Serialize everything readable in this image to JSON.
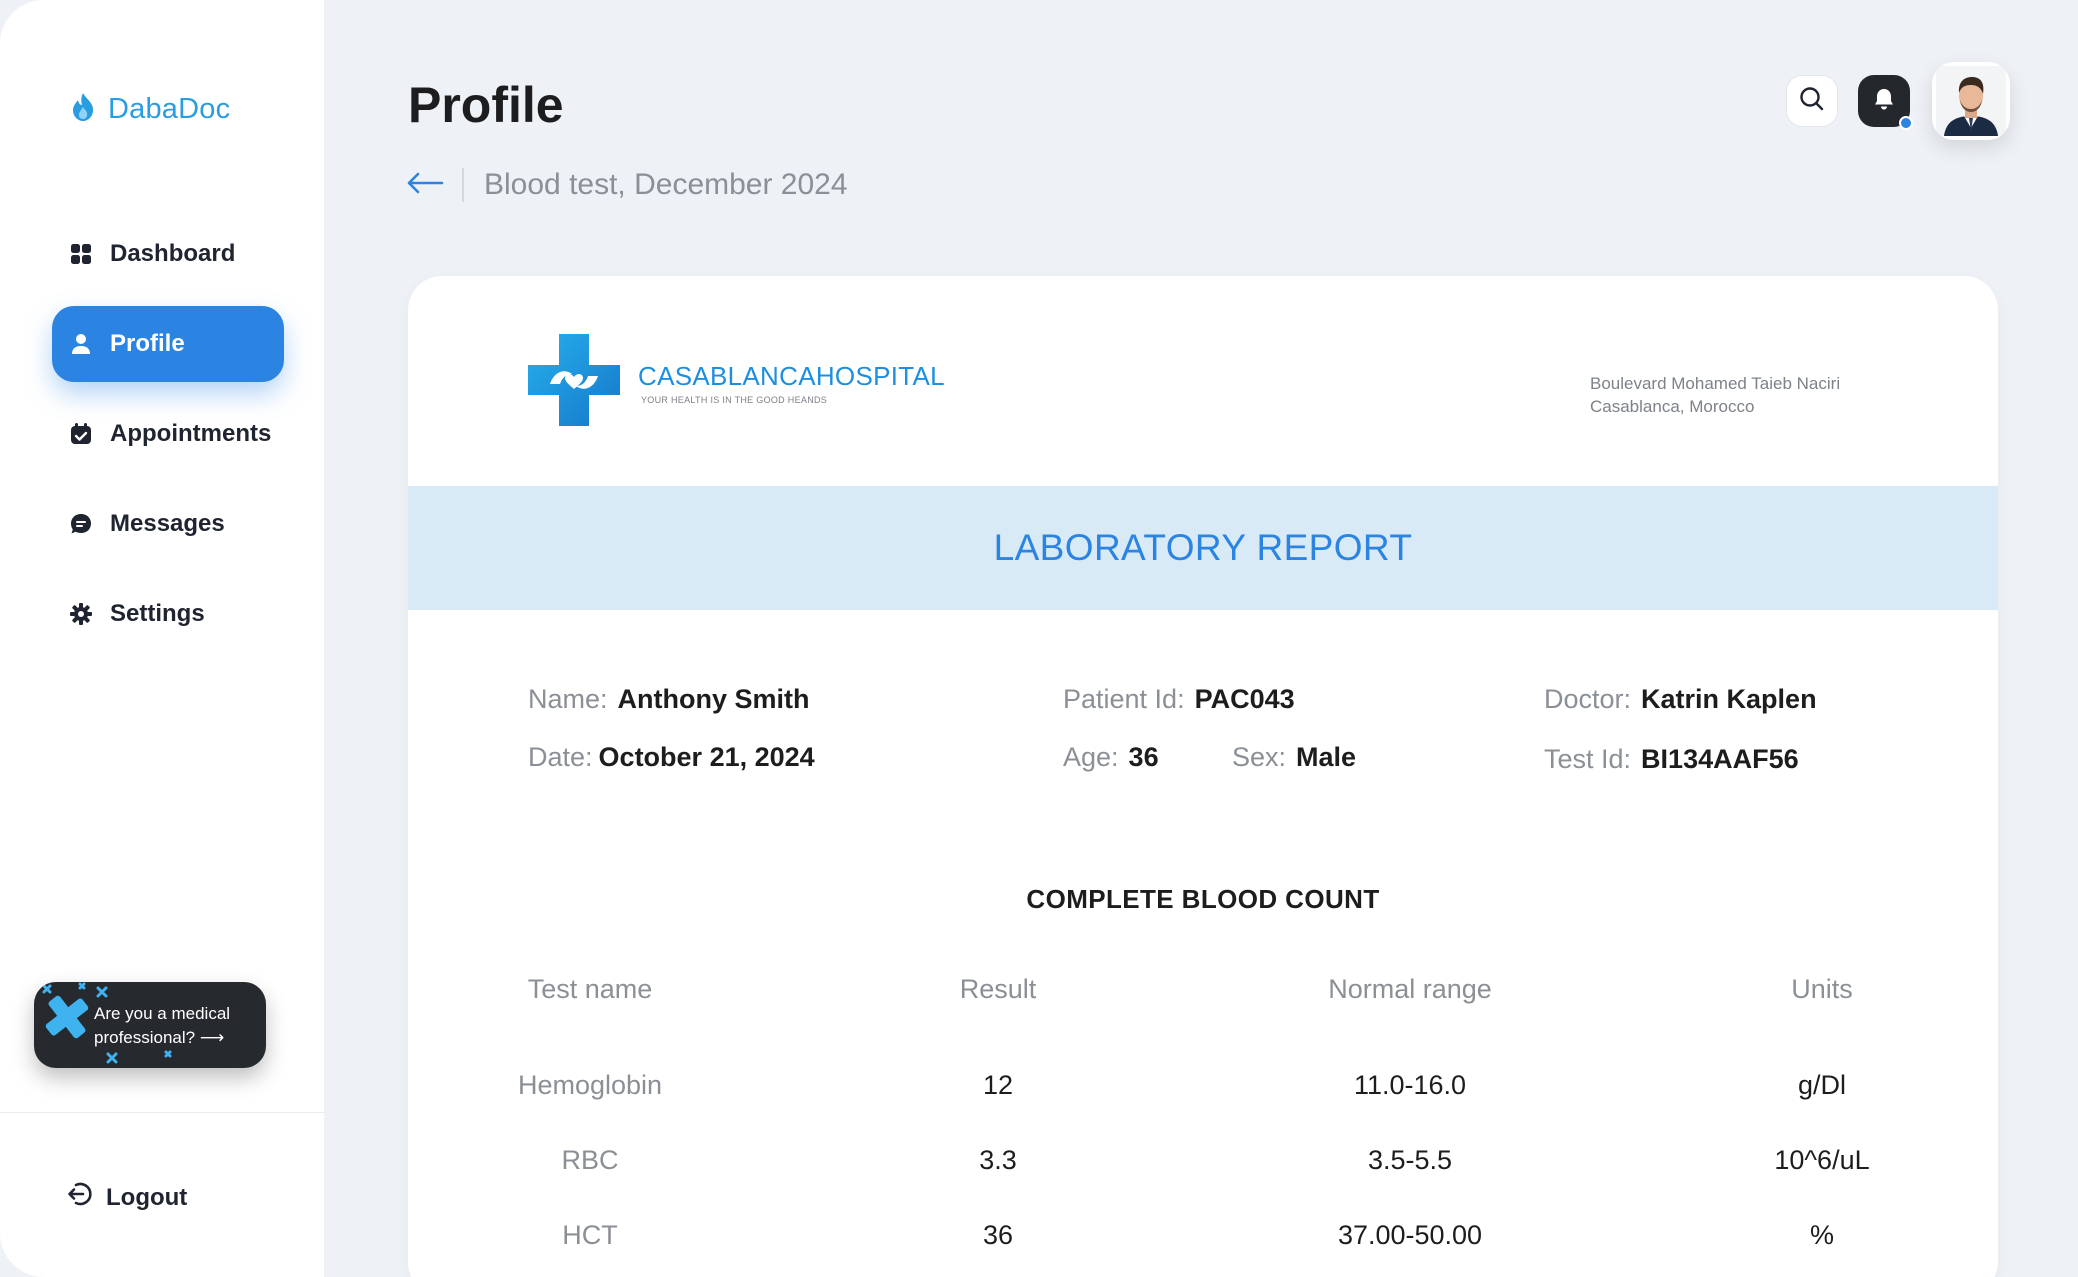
{
  "app": {
    "brand": "DabaDoc"
  },
  "sidebar": {
    "items": [
      {
        "label": "Dashboard",
        "icon": "grid-icon",
        "active": false
      },
      {
        "label": "Profile",
        "icon": "user-icon",
        "active": true
      },
      {
        "label": "Appointments",
        "icon": "calendar-check-icon",
        "active": false
      },
      {
        "label": "Messages",
        "icon": "chat-icon",
        "active": false
      },
      {
        "label": "Settings",
        "icon": "gear-icon",
        "active": false
      }
    ],
    "promo": {
      "line1": "Are you a medical",
      "line2": "professional?",
      "arrow": "⟶"
    },
    "logout": "Logout"
  },
  "header": {
    "title": "Profile",
    "back_arrow": "⟵",
    "breadcrumb": "Blood test, December 2024"
  },
  "report": {
    "hospital_name": "CASABLANCAHOSPITAL",
    "hospital_tagline": "YOUR HEALTH IS IN THE GOOD HEANDS",
    "address_line1": "Boulevard Mohamed Taieb Naciri",
    "address_line2": "Casablanca, Morocco",
    "title": "LABORATORY REPORT",
    "patient": {
      "name_label": "Name:",
      "name": "Anthony Smith",
      "date_label": "Date:",
      "date": "October 21, 2024",
      "patient_id_label": "Patient Id:",
      "patient_id": "PAC043",
      "age_label": "Age:",
      "age": "36",
      "sex_label": "Sex:",
      "sex": "Male",
      "doctor_label": "Doctor:",
      "doctor": "Katrin Kaplen",
      "test_id_label": "Test Id:",
      "test_id": "BI134AAF56"
    },
    "section_title": "COMPLETE BLOOD COUNT",
    "columns": [
      "Test name",
      "Result",
      "Normal range",
      "Units"
    ],
    "rows": [
      {
        "name": "Hemoglobin",
        "result": "12",
        "range": "11.0-16.0",
        "units": "g/Dl"
      },
      {
        "name": "RBC",
        "result": "3.3",
        "range": "3.5-5.5",
        "units": "10^6/uL"
      },
      {
        "name": "HCT",
        "result": "36",
        "range": "37.00-50.00",
        "units": "%"
      }
    ]
  },
  "colors": {
    "accent": "#2b84e2",
    "band": "#d9eaf7",
    "brand_text": "#2a9de0",
    "dark": "#24272c"
  }
}
